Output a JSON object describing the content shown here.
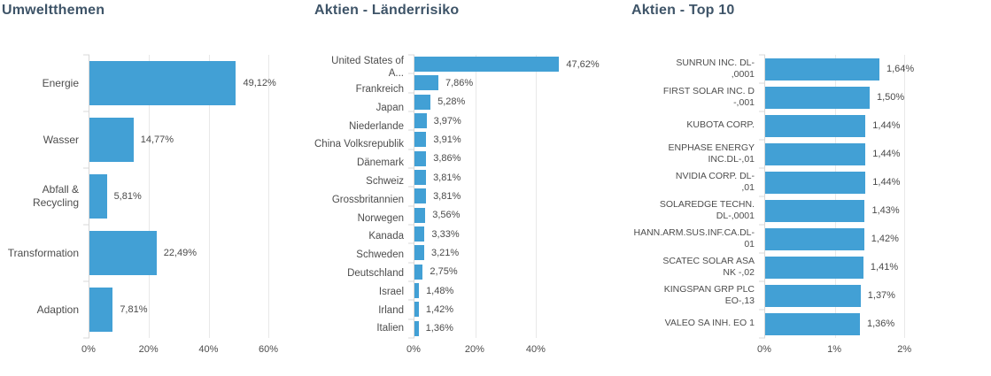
{
  "colors": {
    "bar": "#42a0d5",
    "title": "#3e5468",
    "label": "#4d4d4d",
    "grid": "#e8e8e8",
    "axis": "#d8d8d8"
  },
  "chart_data": [
    {
      "type": "bar",
      "orientation": "horizontal",
      "title": "Umweltthemen",
      "categories": [
        "Energie",
        "Wasser",
        "Abfall & Recycling",
        "Transformation",
        "Adaption"
      ],
      "values": [
        49.12,
        14.77,
        5.81,
        22.49,
        7.81
      ],
      "value_labels": [
        "49,12%",
        "14,77%",
        "5,81%",
        "22,49%",
        "7,81%"
      ],
      "xlabel": "",
      "ylabel": "",
      "xlim": [
        0,
        65
      ],
      "ticks": [
        {
          "label": "0%",
          "value": 0
        },
        {
          "label": "20%",
          "value": 20
        },
        {
          "label": "40%",
          "value": 40
        },
        {
          "label": "60%",
          "value": 60
        }
      ],
      "grid": true,
      "legend": "none"
    },
    {
      "type": "bar",
      "orientation": "horizontal",
      "title": "Aktien - Länderrisiko",
      "categories": [
        "United States of A...",
        "Frankreich",
        "Japan",
        "Niederlande",
        "China Volksrepublik",
        "Dänemark",
        "Schweiz",
        "Grossbritannien",
        "Norwegen",
        "Kanada",
        "Schweden",
        "Deutschland",
        "Israel",
        "Irland",
        "Italien"
      ],
      "values": [
        47.62,
        7.86,
        5.28,
        3.97,
        3.91,
        3.86,
        3.81,
        3.81,
        3.56,
        3.33,
        3.21,
        2.75,
        1.48,
        1.42,
        1.36
      ],
      "value_labels": [
        "47,62%",
        "7,86%",
        "5,28%",
        "3,97%",
        "3,91%",
        "3,86%",
        "3,81%",
        "3,81%",
        "3,56%",
        "3,33%",
        "3,21%",
        "2,75%",
        "1,48%",
        "1,42%",
        "1,36%"
      ],
      "xlabel": "",
      "ylabel": "",
      "xlim": [
        0,
        65
      ],
      "ticks": [
        {
          "label": "0%",
          "value": 0
        },
        {
          "label": "20%",
          "value": 20
        },
        {
          "label": "40%",
          "value": 40
        }
      ],
      "grid": true,
      "legend": "none"
    },
    {
      "type": "bar",
      "orientation": "horizontal",
      "title": "Aktien - Top 10",
      "categories": [
        "SUNRUN INC. DL-\n,0001",
        "FIRST SOLAR INC. D\n-,001",
        "KUBOTA CORP.",
        "ENPHASE ENERGY\nINC.DL-,01",
        "NVIDIA CORP. DL-\n,01",
        "SOLAREDGE TECHN.\nDL-,0001",
        "HANN.ARM.SUS.INF.CA.DL-\n01",
        "SCATEC SOLAR ASA\nNK -,02",
        "KINGSPAN GRP PLC\nEO-,13",
        "VALEO SA INH. EO 1"
      ],
      "values": [
        1.64,
        1.5,
        1.44,
        1.44,
        1.44,
        1.43,
        1.42,
        1.41,
        1.37,
        1.36
      ],
      "value_labels": [
        "1,64%",
        "1,50%",
        "1,44%",
        "1,44%",
        "1,44%",
        "1,43%",
        "1,42%",
        "1,41%",
        "1,37%",
        "1,36%"
      ],
      "xlabel": "",
      "ylabel": "",
      "xlim": [
        0,
        2.25
      ],
      "ticks": [
        {
          "label": "0%",
          "value": 0
        },
        {
          "label": "1%",
          "value": 1
        },
        {
          "label": "2%",
          "value": 2
        }
      ],
      "grid": true,
      "legend": "none"
    }
  ]
}
